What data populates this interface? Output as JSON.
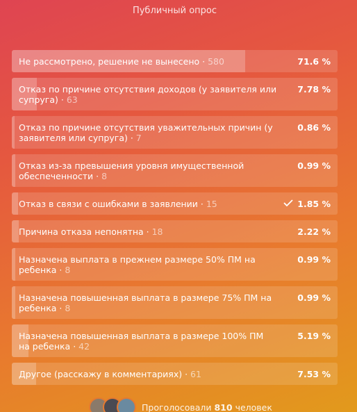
{
  "header": {
    "subtitle": "Публичный опрос"
  },
  "options": [
    {
      "text": "Не рассмотрено, решение не вынесено",
      "count": 580,
      "percent": 71.6,
      "percent_label": "71.6 %"
    },
    {
      "text": "Отказ по причине отсутствия доходов (у заявителя или супруга)",
      "count": 63,
      "percent": 7.78,
      "percent_label": "7.78 %"
    },
    {
      "text": "Отказ по причине отсутствия уважительных причин (у заявителя или супруга)",
      "count": 7,
      "percent": 0.86,
      "percent_label": "0.86 %"
    },
    {
      "text": "Отказ из-за превышения уровня имущественной обеспеченности",
      "count": 8,
      "percent": 0.99,
      "percent_label": "0.99 %"
    },
    {
      "text": "Отказ в связи с ошибками в заявлении",
      "count": 15,
      "percent": 1.85,
      "percent_label": "1.85 %"
    },
    {
      "text": "Причина отказа непонятна",
      "count": 18,
      "percent": 2.22,
      "percent_label": "2.22 %"
    },
    {
      "text": "Назначена выплата в прежнем размере 50% ПМ на ребенка",
      "count": 8,
      "percent": 0.99,
      "percent_label": "0.99 %"
    },
    {
      "text": "Назначена повышенная выплата в размере 75% ПМ на ребенка",
      "count": 8,
      "percent": 0.99,
      "percent_label": "0.99 %"
    },
    {
      "text": "Назначена повышенная выплата в размере 100% ПМ на ребенка",
      "count": 42,
      "percent": 5.19,
      "percent_label": "5.19 %"
    },
    {
      "text": "Другое (расскажу в комментариях)",
      "count": 61,
      "percent": 7.53,
      "percent_label": "7.53 %"
    }
  ],
  "voted_option": 4,
  "footer": {
    "prefix": "Проголосовали",
    "total": 810,
    "suffix": "человек"
  }
}
